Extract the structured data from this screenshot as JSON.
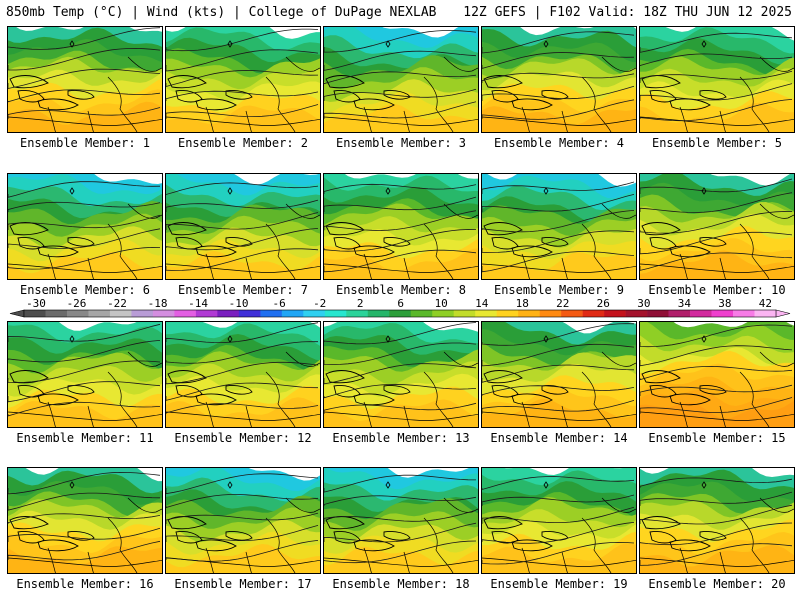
{
  "header": {
    "left_text": "850mb Temp (°C) | Wind (kts) | College of DuPage NEXLAB",
    "right_text": "12Z GEFS | F102 Valid: 18Z THU JUN 12 2025"
  },
  "colorbar": {
    "labels_top": [
      "-30",
      "-26",
      "-22",
      "-18",
      "-14",
      "-10",
      "-6",
      "-2",
      "2",
      "6",
      "10",
      "14",
      "18",
      "22",
      "26",
      "30",
      "34",
      "38",
      "42"
    ],
    "colors": [
      "#4d4d4d",
      "#6b6b6b",
      "#888888",
      "#a6a6a6",
      "#c4c4c4",
      "#b89cd6",
      "#d48ee0",
      "#e35fe3",
      "#b13ad4",
      "#7a1fbf",
      "#3f2fd8",
      "#1f6ff0",
      "#20a6f5",
      "#2fd0f0",
      "#27e6cf",
      "#2bd39a",
      "#25b56a",
      "#2c9e3a",
      "#5ab82a",
      "#8fcf25",
      "#c2dc2a",
      "#e8e832",
      "#ffd21f",
      "#ffb214",
      "#ff8a12",
      "#f45a13",
      "#e02a14",
      "#c4121c",
      "#a4122c",
      "#8f0f36",
      "#b01e6a",
      "#d22a9e",
      "#ef3fce",
      "#f77be6",
      "#fbb5f2"
    ]
  },
  "members": [
    {
      "label": "Ensemble Member: 1",
      "style": 2
    },
    {
      "label": "Ensemble Member: 2",
      "style": 1
    },
    {
      "label": "Ensemble Member: 3",
      "style": 0
    },
    {
      "label": "Ensemble Member: 4",
      "style": 2
    },
    {
      "label": "Ensemble Member: 5",
      "style": 1
    },
    {
      "label": "Ensemble Member: 6",
      "style": 0
    },
    {
      "label": "Ensemble Member: 7",
      "style": 0
    },
    {
      "label": "Ensemble Member: 8",
      "style": 1
    },
    {
      "label": "Ensemble Member: 9",
      "style": 0
    },
    {
      "label": "Ensemble Member: 10",
      "style": 2
    },
    {
      "label": "Ensemble Member: 11",
      "style": 1
    },
    {
      "label": "Ensemble Member: 12",
      "style": 1
    },
    {
      "label": "Ensemble Member: 13",
      "style": 1
    },
    {
      "label": "Ensemble Member: 14",
      "style": 2
    },
    {
      "label": "Ensemble Member: 15",
      "style": 3
    },
    {
      "label": "Ensemble Member: 16",
      "style": 2
    },
    {
      "label": "Ensemble Member: 17",
      "style": 0
    },
    {
      "label": "Ensemble Member: 18",
      "style": 0
    },
    {
      "label": "Ensemble Member: 19",
      "style": 1
    },
    {
      "label": "Ensemble Member: 20",
      "style": 2
    }
  ]
}
